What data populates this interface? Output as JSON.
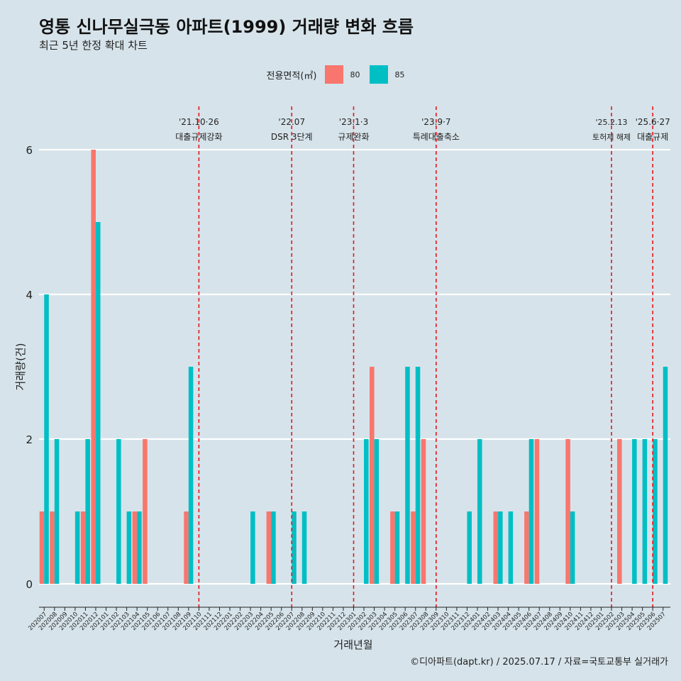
{
  "title": "영통 신나무실극동 아파트(1999) 거래량 변화 흐름",
  "subtitle": "최근 5년 한정 확대 차트",
  "legend": {
    "title": "전용면적(㎡)",
    "items": [
      {
        "label": "80",
        "color": "#F8766D"
      },
      {
        "label": "85",
        "color": "#00BFC4"
      }
    ]
  },
  "caption": "©디아파트(dapt.kr) / 2025.07.17 / 자료=국토교통부 실거래가",
  "chart_data": {
    "type": "bar",
    "xlabel": "거래년월",
    "ylabel": "거래량(건)",
    "ylim": [
      0,
      6.4
    ],
    "yticks": [
      0,
      2,
      4,
      6
    ],
    "categories": [
      "202007",
      "202008",
      "202009",
      "202010",
      "202011",
      "202012",
      "202101",
      "202102",
      "202103",
      "202104",
      "202105",
      "202106",
      "202107",
      "202108",
      "202109",
      "202110",
      "202111",
      "202112",
      "202201",
      "202202",
      "202203",
      "202204",
      "202205",
      "202206",
      "202207",
      "202208",
      "202209",
      "202210",
      "202211",
      "202212",
      "202301",
      "202302",
      "202303",
      "202304",
      "202305",
      "202306",
      "202307",
      "202308",
      "202309",
      "202310",
      "202311",
      "202312",
      "202401",
      "202402",
      "202403",
      "202404",
      "202405",
      "202406",
      "202407",
      "202408",
      "202409",
      "202410",
      "202411",
      "202412",
      "202501",
      "202502",
      "202503",
      "202504",
      "202505",
      "202506",
      "202507"
    ],
    "series": [
      {
        "name": "80",
        "color": "#F8766D",
        "values": [
          1,
          1,
          0,
          0,
          1,
          6,
          0,
          0,
          0,
          1,
          2,
          0,
          0,
          0,
          1,
          0,
          0,
          0,
          0,
          0,
          0,
          0,
          1,
          0,
          0,
          0,
          0,
          0,
          0,
          0,
          0,
          0,
          3,
          0,
          1,
          0,
          1,
          2,
          0,
          0,
          0,
          0,
          0,
          0,
          1,
          0,
          0,
          1,
          2,
          0,
          0,
          2,
          0,
          0,
          0,
          0,
          2,
          0,
          0,
          0,
          0
        ]
      },
      {
        "name": "85",
        "color": "#00BFC4",
        "values": [
          4,
          2,
          0,
          1,
          2,
          5,
          0,
          2,
          1,
          1,
          0,
          0,
          0,
          0,
          3,
          0,
          0,
          0,
          0,
          0,
          1,
          0,
          1,
          0,
          1,
          1,
          0,
          0,
          0,
          0,
          0,
          2,
          2,
          0,
          1,
          3,
          3,
          0,
          0,
          0,
          0,
          1,
          2,
          0,
          1,
          1,
          0,
          2,
          0,
          0,
          0,
          1,
          0,
          0,
          0,
          0,
          0,
          2,
          2,
          2,
          3
        ]
      }
    ],
    "annotations": [
      {
        "x": "202110",
        "date": "'21.10·26",
        "label": "대출규제강화",
        "small": false
      },
      {
        "x": "202207",
        "date": "'22.07",
        "label": "DSR 3단계",
        "small": false
      },
      {
        "x": "202301",
        "date": "'23.1·3",
        "label": "규제완화",
        "small": false
      },
      {
        "x": "202309",
        "date": "'23.9·7",
        "label": "특례대출축소",
        "small": false
      },
      {
        "x": "202502",
        "date": "'25.2.13",
        "label": "토허제 해제",
        "small": true
      },
      {
        "x": "202506",
        "date": "'25.6·27",
        "label": "대출규제",
        "small": false
      }
    ]
  }
}
